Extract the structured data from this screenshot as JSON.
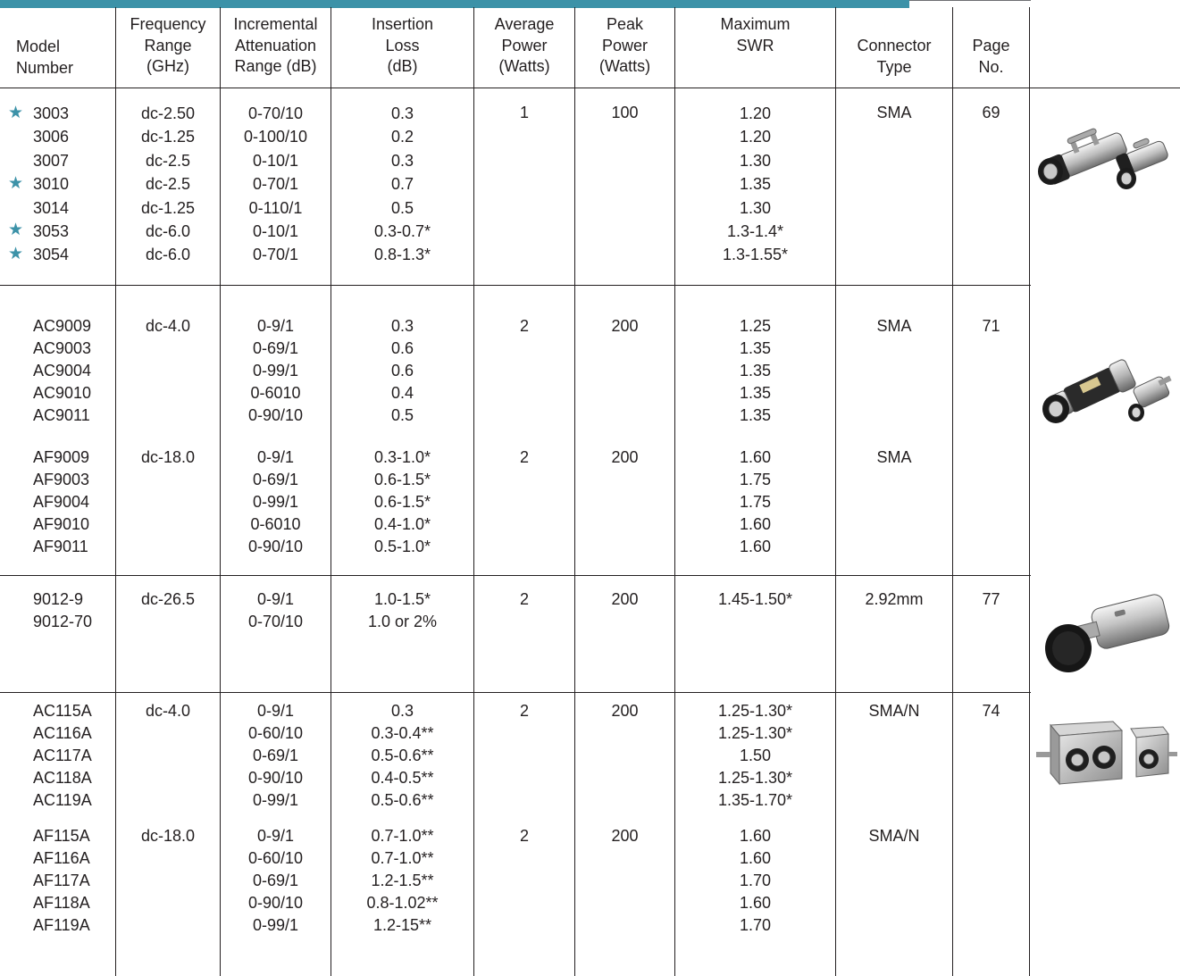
{
  "header": {
    "model": "Model\nNumber",
    "freq": "Frequency\nRange\n(GHz)",
    "atten": "Incremental\nAttenuation\nRange (dB)",
    "loss": "Insertion\nLoss\n(dB)",
    "avg": "Average\nPower\n(Watts)",
    "peak": "Peak\nPower\n(Watts)",
    "swr": "Maximum\nSWR",
    "conn": "Connector\nType",
    "page": "Page\nNo."
  },
  "star_glyph": "★",
  "groups": [
    {
      "models": "3003\n3006\n3007\n3010\n3014\n3053\n3054",
      "freq": "dc-2.50\ndc-1.25\ndc-2.5\ndc-2.5\ndc-1.25\ndc-6.0\ndc-6.0",
      "atten": "0-70/10\n0-100/10\n0-10/1\n0-70/1\n0-110/1\n0-10/1\n0-70/1",
      "loss": "0.3\n0.2\n0.3\n0.7\n0.5\n0.3-0.7*\n0.8-1.3*",
      "avg": "1",
      "peak": "100",
      "swr": "1.20\n1.20\n1.30\n1.35\n1.30\n1.3-1.4*\n1.3-1.55*",
      "conn": "SMA",
      "page": "69"
    },
    {
      "models": "AC9009\nAC9003\nAC9004\nAC9010\nAC9011",
      "freq": "dc-4.0",
      "atten": "0-9/1\n0-69/1\n0-99/1\n0-6010\n0-90/10",
      "loss": "0.3\n0.6\n0.6\n0.4\n0.5",
      "avg": "2",
      "peak": "200",
      "swr": "1.25\n1.35\n1.35\n1.35\n1.35",
      "conn": "SMA",
      "page": "71"
    },
    {
      "models": "AF9009\nAF9003\nAF9004\nAF9010\nAF9011",
      "freq": "dc-18.0",
      "atten": "0-9/1\n0-69/1\n0-99/1\n0-6010\n0-90/10",
      "loss": "0.3-1.0*\n0.6-1.5*\n0.6-1.5*\n0.4-1.0*\n0.5-1.0*",
      "avg": "2",
      "peak": "200",
      "swr": "1.60\n1.75\n1.75\n1.60\n1.60",
      "conn": "SMA"
    },
    {
      "models": "9012-9\n9012-70",
      "freq": "dc-26.5",
      "atten": "0-9/1\n0-70/10",
      "loss": "1.0-1.5*\n1.0 or 2%",
      "avg": "2",
      "peak": "200",
      "swr": "1.45-1.50*",
      "conn": "2.92mm",
      "page": "77"
    },
    {
      "models": "AC115A\nAC116A\nAC117A\nAC118A\nAC119A",
      "freq": "dc-4.0",
      "atten": "0-9/1\n0-60/10\n0-69/1\n0-90/10\n0-99/1",
      "loss": "0.3\n0.3-0.4**\n0.5-0.6**\n0.4-0.5**\n0.5-0.6**",
      "avg": "2",
      "peak": "200",
      "swr": "1.25-1.30*\n1.25-1.30*\n1.50\n1.25-1.30*\n1.35-1.70*",
      "conn": "SMA/N",
      "page": "74"
    },
    {
      "models": "AF115A\nAF116A\nAF117A\nAF118A\nAF119A",
      "freq": "dc-18.0",
      "atten": "0-9/1\n0-60/10\n0-69/1\n0-90/10\n0-99/1",
      "loss": "0.7-1.0**\n0.7-1.0**\n1.2-1.5**\n0.8-1.02**\n1.2-15**",
      "avg": "2",
      "peak": "200",
      "swr": "1.60\n1.60\n1.70\n1.60\n1.70",
      "conn": "SMA/N"
    }
  ],
  "colors": {
    "accent": "#3c92a8",
    "rule": "#231f20"
  }
}
